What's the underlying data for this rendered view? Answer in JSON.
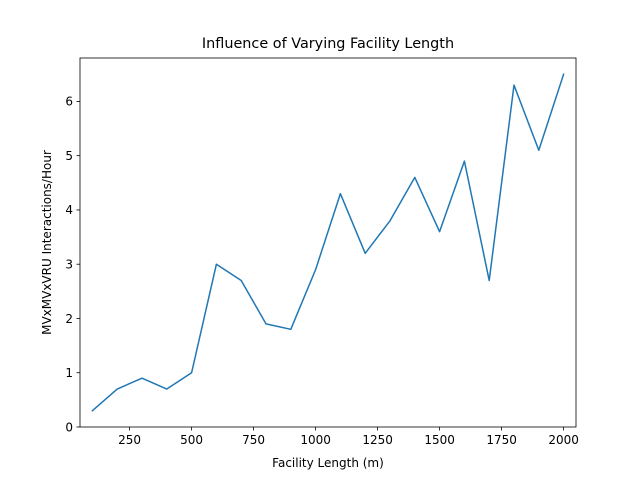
{
  "chart_data": {
    "type": "line",
    "title": "Influence of Varying Facility Length",
    "xlabel": "Facility Length (m)",
    "ylabel": "MVxMVxVRU Interactions/Hour",
    "xlim": [
      50,
      2050
    ],
    "ylim": [
      0,
      6.8
    ],
    "xticks": [
      250,
      500,
      750,
      1000,
      1250,
      1500,
      1750,
      2000
    ],
    "xtick_labels": [
      "250",
      "500",
      "750",
      "1000",
      "1250",
      "1500",
      "1750",
      "2000"
    ],
    "yticks": [
      0,
      1,
      2,
      3,
      4,
      5,
      6
    ],
    "ytick_labels": [
      "0",
      "1",
      "2",
      "3",
      "4",
      "5",
      "6"
    ],
    "grid": false,
    "line_color": "#1f77b4",
    "series": [
      {
        "x": [
          100,
          200,
          300,
          400,
          500,
          600,
          700,
          800,
          900,
          1000,
          1100,
          1200,
          1300,
          1400,
          1500,
          1600,
          1700,
          1800,
          1900,
          2000
        ],
        "values": [
          0.3,
          0.7,
          0.9,
          0.7,
          1.0,
          3.0,
          2.7,
          1.9,
          1.8,
          2.9,
          4.3,
          3.2,
          3.8,
          4.6,
          3.6,
          4.9,
          2.7,
          6.3,
          5.1,
          6.5
        ]
      }
    ]
  }
}
